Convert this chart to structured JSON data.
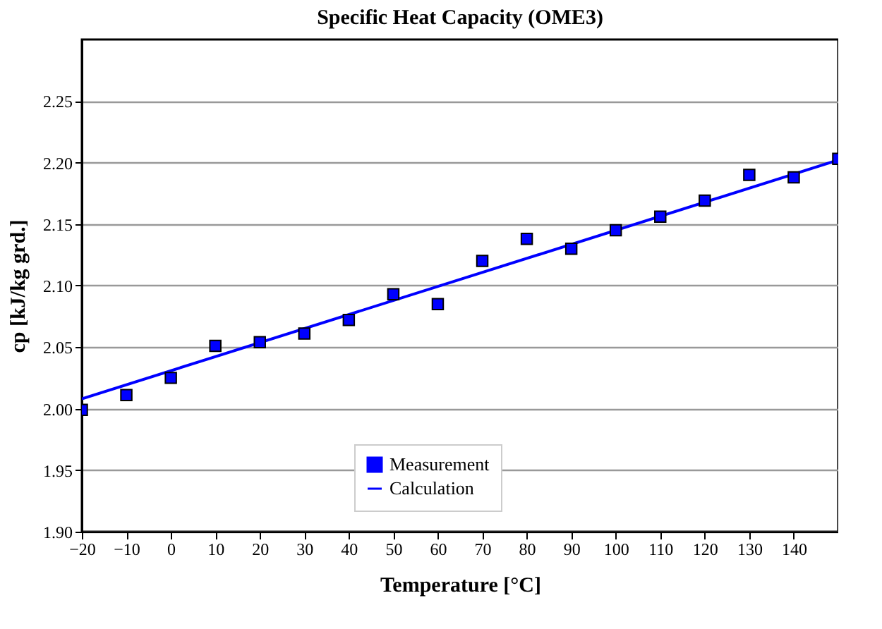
{
  "chart_data": {
    "type": "scatter",
    "title": "Specific Heat Capacity (OME3)",
    "xlabel": "Temperature [°C]",
    "ylabel": "cp [kJ/kg grd.]",
    "x": [
      -20,
      -10,
      0,
      10,
      20,
      30,
      40,
      50,
      60,
      70,
      80,
      90,
      100,
      110,
      120,
      130,
      140,
      150
    ],
    "series": [
      {
        "name": "Measurement",
        "marker": "square",
        "color": "#0000ff",
        "values": [
          1.999,
          2.011,
          2.025,
          2.051,
          2.054,
          2.061,
          2.072,
          2.093,
          2.085,
          2.12,
          2.138,
          2.13,
          2.145,
          2.156,
          2.169,
          2.19,
          2.188,
          2.203
        ]
      },
      {
        "name": "Calculation",
        "type": "line",
        "color": "#0000ff",
        "x": [
          -20,
          150
        ],
        "values": [
          2.008,
          2.202
        ]
      }
    ],
    "xlim": [
      -20,
      150
    ],
    "xticks": [
      -20,
      -10,
      0,
      10,
      20,
      30,
      40,
      50,
      60,
      70,
      80,
      90,
      100,
      110,
      120,
      130,
      140
    ],
    "ylim": [
      1.9,
      2.3
    ],
    "yticks": [
      {
        "value": 1.9,
        "label": "1.90"
      },
      1.95,
      {
        "value": 2.0,
        "label": "2.00"
      },
      2.05,
      {
        "value": 2.1,
        "label": "2.10"
      },
      2.15,
      {
        "value": 2.2,
        "label": "2.20"
      },
      2.25
    ],
    "grid": "y",
    "legend": "bottom"
  }
}
